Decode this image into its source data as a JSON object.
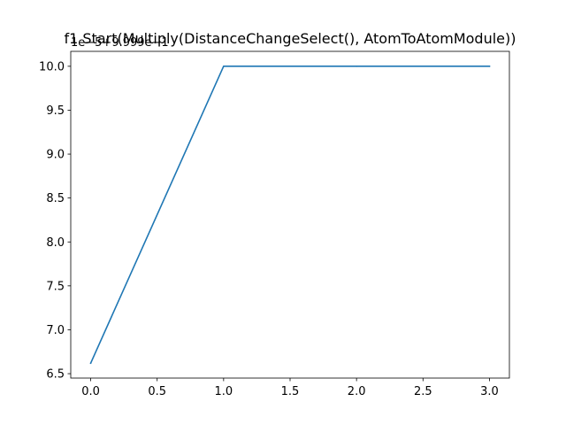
{
  "chart_data": {
    "type": "line",
    "title": "f1 Start(Multiply(DistanceChangeSelect(), AtomToAtomModule))",
    "offset_text": "1e−5+9.999e−1",
    "xlabel": "",
    "ylabel": "",
    "x": [
      0,
      1,
      2,
      3
    ],
    "series": [
      {
        "values": [
          6.62,
          10.0,
          10.0,
          10.0
        ],
        "color": "#1f77b4"
      }
    ],
    "xlim": [
      -0.15,
      3.15
    ],
    "ylim": [
      6.45,
      10.17
    ],
    "xticks": [
      0,
      0.5,
      1,
      1.5,
      2,
      2.5,
      3
    ],
    "xtick_labels": [
      "0.0",
      "0.5",
      "1.0",
      "1.5",
      "2.0",
      "2.5",
      "3.0"
    ],
    "yticks": [
      6.5,
      7,
      7.5,
      8,
      8.5,
      9,
      9.5,
      10
    ],
    "ytick_labels": [
      "6.5",
      "7.0",
      "7.5",
      "8.0",
      "8.5",
      "9.0",
      "9.5",
      "10.0"
    ],
    "grid": false,
    "legend": "none"
  }
}
